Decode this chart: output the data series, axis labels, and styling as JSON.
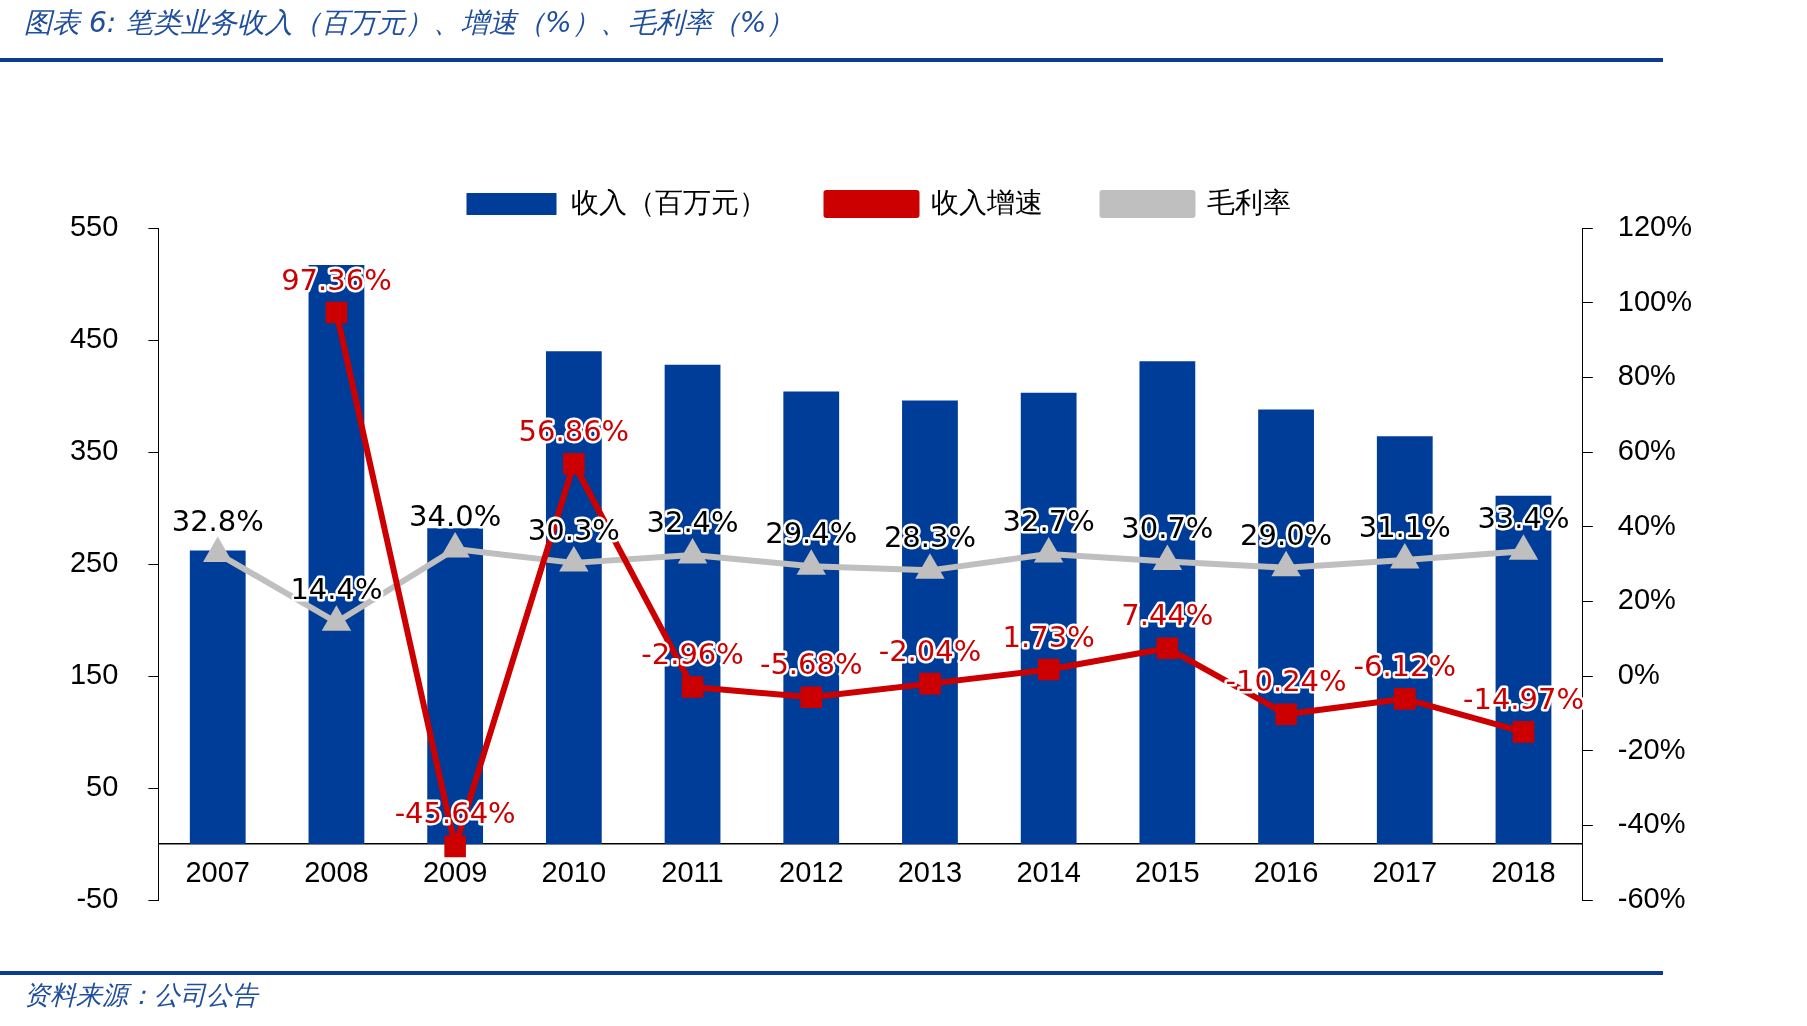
{
  "chart_data": {
    "type": "bar",
    "title": "图表 6:  笔类业务收入（百万元）、增速（%）、毛利率（%）",
    "categories": [
      "2007",
      "2008",
      "2009",
      "2010",
      "2011",
      "2012",
      "2013",
      "2014",
      "2015",
      "2016",
      "2017",
      "2018"
    ],
    "series": [
      {
        "name": "收入（百万元）",
        "color": "#003d99",
        "values": [
          262,
          517,
          282,
          440,
          428,
          404,
          396,
          403,
          431,
          388,
          364,
          311
        ]
      },
      {
        "name": "收入增速",
        "type": "line",
        "axis": "y2",
        "marker": "square",
        "color": "#cc0000",
        "values": [
          null,
          97.36,
          -45.64,
          56.86,
          -2.96,
          -5.68,
          -2.04,
          1.73,
          7.44,
          -10.24,
          -6.12,
          -14.97
        ],
        "value_labels": [
          null,
          "97.36%",
          "-45.64%",
          "56.86%",
          "-2.96%",
          "-5.68%",
          "-2.04%",
          "1.73%",
          "7.44%",
          "-10.24%",
          "-6.12%",
          "-14.97%"
        ]
      },
      {
        "name": "毛利率",
        "type": "line",
        "axis": "y2",
        "marker": "triangle",
        "color": "#bfbfbf",
        "values": [
          32.8,
          14.4,
          34.0,
          30.3,
          32.4,
          29.4,
          28.3,
          32.7,
          30.7,
          29.0,
          31.1,
          33.4
        ],
        "value_labels": [
          "32.8%",
          "14.4%",
          "34.0%",
          "30.3%",
          "32.4%",
          "29.4%",
          "28.3%",
          "32.7%",
          "30.7%",
          "29.0%",
          "31.1%",
          "33.4%"
        ]
      }
    ],
    "ylim": [
      -50,
      550
    ],
    "yticks": [
      -50,
      50,
      150,
      250,
      350,
      450,
      550
    ],
    "y2lim": [
      -60,
      120
    ],
    "y2ticks": [
      {
        "value": -60,
        "label": "-60%"
      },
      {
        "value": -40,
        "label": "-40%"
      },
      {
        "value": -20,
        "label": "-20%"
      },
      {
        "value": 0,
        "label": "0%"
      },
      {
        "value": 20,
        "label": "20%"
      },
      {
        "value": 40,
        "label": "40%"
      },
      {
        "value": 60,
        "label": "60%"
      },
      {
        "value": 80,
        "label": "80%"
      },
      {
        "value": 100,
        "label": "100%"
      },
      {
        "value": 120,
        "label": "120%"
      }
    ],
    "grid": false,
    "legend": "top",
    "annotations": [
      "资料来源：公司公告"
    ]
  }
}
